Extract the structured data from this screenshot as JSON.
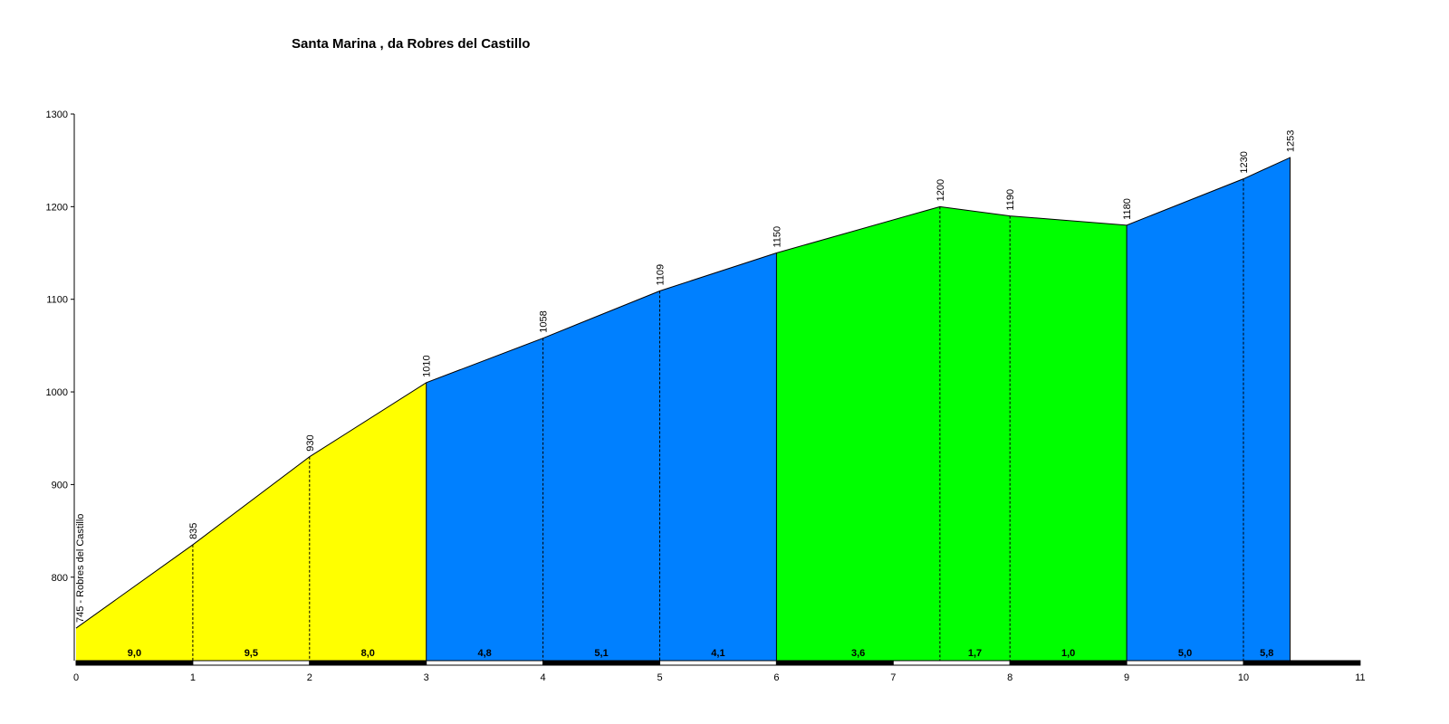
{
  "chart_data": {
    "type": "area",
    "title": "Santa Marina , da Robres del Castillo",
    "xlabel": "",
    "ylabel": "",
    "xlim": [
      0,
      11
    ],
    "ylim": [
      700,
      1300
    ],
    "y_ticks": [
      "800",
      "900",
      "1000",
      "1100",
      "1200",
      "1300"
    ],
    "x_ticks": [
      "0",
      "1",
      "2",
      "3",
      "4",
      "5",
      "6",
      "7",
      "8",
      "9",
      "10",
      "11"
    ],
    "start_label": "745 - Robres del Castillo",
    "points": [
      {
        "x": 0,
        "y": 745
      },
      {
        "x": 1,
        "y": 835,
        "label": "835"
      },
      {
        "x": 2,
        "y": 930,
        "label": "930"
      },
      {
        "x": 3,
        "y": 1010,
        "label": "1010"
      },
      {
        "x": 4,
        "y": 1058,
        "label": "1058"
      },
      {
        "x": 5,
        "y": 1109,
        "label": "1109"
      },
      {
        "x": 6,
        "y": 1150,
        "label": "1150"
      },
      {
        "x": 7.4,
        "y": 1200,
        "label": "1200"
      },
      {
        "x": 8,
        "y": 1190,
        "label": "1190"
      },
      {
        "x": 9,
        "y": 1180,
        "label": "1180"
      },
      {
        "x": 10,
        "y": 1230,
        "label": "1230"
      },
      {
        "x": 10.4,
        "y": 1253,
        "label": "1253"
      }
    ],
    "segments": [
      {
        "from": 0,
        "to": 1,
        "gradient": "9,0",
        "color": "#ffff00"
      },
      {
        "from": 1,
        "to": 2,
        "gradient": "9,5",
        "color": "#ffff00"
      },
      {
        "from": 2,
        "to": 3,
        "gradient": "8,0",
        "color": "#ffff00"
      },
      {
        "from": 3,
        "to": 4,
        "gradient": "4,8",
        "color": "#0080ff"
      },
      {
        "from": 4,
        "to": 5,
        "gradient": "5,1",
        "color": "#0080ff"
      },
      {
        "from": 5,
        "to": 6,
        "gradient": "4,1",
        "color": "#0080ff"
      },
      {
        "from": 6,
        "to": 7.4,
        "gradient": "3,6",
        "color": "#00ff00"
      },
      {
        "from": 7.4,
        "to": 8,
        "gradient": "1,7",
        "color": "#00ff00"
      },
      {
        "from": 8,
        "to": 9,
        "gradient": "1,0",
        "color": "#00ff00"
      },
      {
        "from": 9,
        "to": 10,
        "gradient": "5,0",
        "color": "#0080ff"
      },
      {
        "from": 10,
        "to": 10.4,
        "gradient": "5,8",
        "color": "#0080ff"
      }
    ]
  }
}
